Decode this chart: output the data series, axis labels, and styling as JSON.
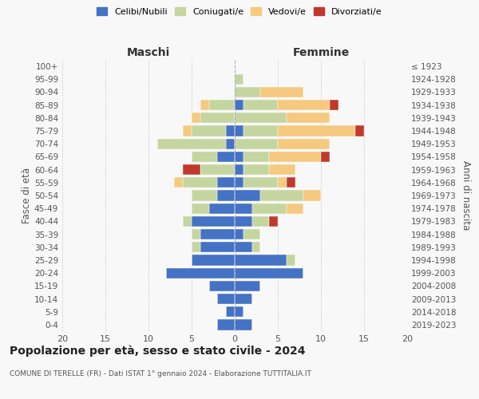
{
  "age_groups": [
    "0-4",
    "5-9",
    "10-14",
    "15-19",
    "20-24",
    "25-29",
    "30-34",
    "35-39",
    "40-44",
    "45-49",
    "50-54",
    "55-59",
    "60-64",
    "65-69",
    "70-74",
    "75-79",
    "80-84",
    "85-89",
    "90-94",
    "95-99",
    "100+"
  ],
  "birth_years": [
    "2019-2023",
    "2014-2018",
    "2009-2013",
    "2004-2008",
    "1999-2003",
    "1994-1998",
    "1989-1993",
    "1984-1988",
    "1979-1983",
    "1974-1978",
    "1969-1973",
    "1964-1968",
    "1959-1963",
    "1954-1958",
    "1949-1953",
    "1944-1948",
    "1939-1943",
    "1934-1938",
    "1929-1933",
    "1924-1928",
    "≤ 1923"
  ],
  "maschi": {
    "celibi": [
      2,
      1,
      2,
      3,
      8,
      5,
      4,
      4,
      5,
      3,
      2,
      2,
      0,
      2,
      1,
      1,
      0,
      0,
      0,
      0,
      0
    ],
    "coniugati": [
      0,
      0,
      0,
      0,
      0,
      0,
      1,
      1,
      1,
      2,
      3,
      4,
      4,
      3,
      8,
      4,
      4,
      3,
      0,
      0,
      0
    ],
    "vedovi": [
      0,
      0,
      0,
      0,
      0,
      0,
      0,
      0,
      0,
      0,
      0,
      1,
      0,
      0,
      0,
      1,
      1,
      1,
      0,
      0,
      0
    ],
    "divorziati": [
      0,
      0,
      0,
      0,
      0,
      0,
      0,
      0,
      0,
      0,
      0,
      0,
      2,
      0,
      0,
      0,
      0,
      0,
      0,
      0,
      0
    ]
  },
  "femmine": {
    "nubili": [
      2,
      1,
      2,
      3,
      8,
      6,
      2,
      1,
      2,
      2,
      3,
      1,
      1,
      1,
      0,
      1,
      0,
      1,
      0,
      0,
      0
    ],
    "coniugate": [
      0,
      0,
      0,
      0,
      0,
      1,
      1,
      2,
      2,
      4,
      5,
      4,
      3,
      3,
      5,
      4,
      6,
      4,
      3,
      1,
      0
    ],
    "vedove": [
      0,
      0,
      0,
      0,
      0,
      0,
      0,
      0,
      0,
      2,
      2,
      1,
      3,
      6,
      6,
      9,
      5,
      6,
      5,
      0,
      0
    ],
    "divorziate": [
      0,
      0,
      0,
      0,
      0,
      0,
      0,
      0,
      1,
      0,
      0,
      1,
      0,
      1,
      0,
      1,
      0,
      1,
      0,
      0,
      0
    ]
  },
  "colors": {
    "celibi_nubili": "#4472C4",
    "coniugati": "#C5D5A0",
    "vedovi": "#F5C97F",
    "divorziati": "#C0392B"
  },
  "xlim": 20,
  "title": "Popolazione per età, sesso e stato civile - 2024",
  "subtitle": "COMUNE DI TERELLE (FR) - Dati ISTAT 1° gennaio 2024 - Elaborazione TUTTITALIA.IT",
  "ylabel_left": "Fasce di età",
  "ylabel_right": "Anni di nascita",
  "xlabel_left": "Maschi",
  "xlabel_right": "Femmine",
  "bg_color": "#f8f8f8"
}
